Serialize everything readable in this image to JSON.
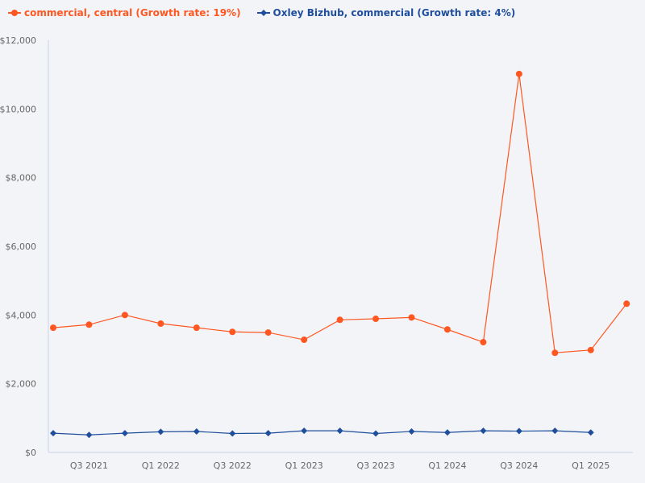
{
  "chart_data": {
    "type": "line",
    "title": "",
    "xlabel": "",
    "ylabel": "",
    "ylim": [
      0,
      12000
    ],
    "yticks": [
      0,
      2000,
      4000,
      6000,
      8000,
      10000,
      12000
    ],
    "ytick_labels": [
      "$0",
      "$2,000",
      "$4,000",
      "$6,000",
      "$8,000",
      "$10,000",
      "$12,000"
    ],
    "categories": [
      "Q2 2021",
      "Q3 2021",
      "Q4 2021",
      "Q1 2022",
      "Q2 2022",
      "Q3 2022",
      "Q4 2022",
      "Q1 2023",
      "Q2 2023",
      "Q3 2023",
      "Q4 2023",
      "Q1 2024",
      "Q2 2024",
      "Q3 2024",
      "Q4 2024",
      "Q1 2025",
      "Q2 2025"
    ],
    "xtick_labels": [
      "Q3 2021",
      "Q1 2022",
      "Q3 2022",
      "Q1 2023",
      "Q3 2023",
      "Q1 2024",
      "Q3 2024",
      "Q1 2025"
    ],
    "grid": false,
    "legend_position": "top-left",
    "series": [
      {
        "name": "commercial, central (Growth rate: 19%)",
        "color": "#ff5722",
        "marker": "circle",
        "values": [
          3630,
          3720,
          4000,
          3750,
          3630,
          3510,
          3490,
          3280,
          3860,
          3890,
          3930,
          3580,
          3210,
          11020,
          2900,
          2980,
          4330
        ]
      },
      {
        "name": "Oxley Bizhub, commercial (Growth rate: 4%)",
        "color": "#1f4e9c",
        "marker": "diamond",
        "values": [
          560,
          510,
          560,
          600,
          610,
          550,
          560,
          630,
          630,
          550,
          610,
          580,
          630,
          620,
          630,
          580,
          null
        ]
      }
    ]
  }
}
